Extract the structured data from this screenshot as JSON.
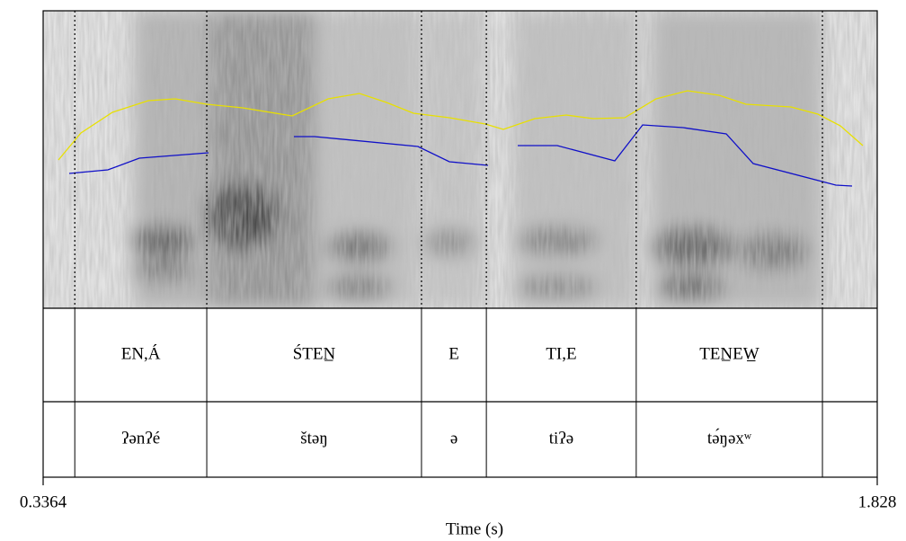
{
  "chart_data": {
    "type": "textgrid",
    "xlim": [
      0.3364,
      1.828
    ],
    "xticks": [
      0.3364,
      1.828
    ],
    "xlabel": "Time (s)",
    "boundaries": [
      0.393,
      0.629,
      1.013,
      1.129,
      1.397,
      1.73
    ],
    "tiers": [
      {
        "labels": [
          null,
          "EN,Á",
          "ŚTEN̲",
          "E",
          "TI,E",
          "TEN̲EW̲",
          null
        ]
      },
      {
        "labels": [
          null,
          "ʔənʔé",
          "štəŋ",
          "ə",
          "tiʔə",
          "tə́ŋəxʷ",
          null
        ]
      }
    ]
  }
}
